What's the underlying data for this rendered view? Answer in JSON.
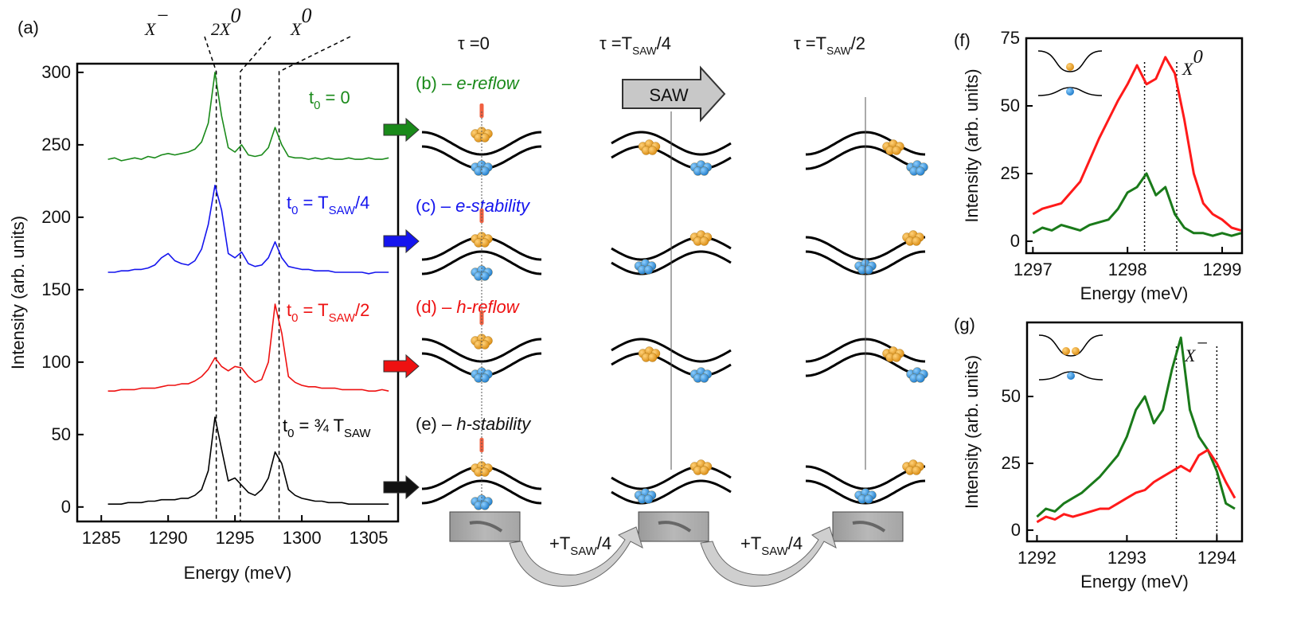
{
  "chart_data": [
    {
      "type": "line",
      "panel": "(a)",
      "xlabel": "Energy (meV)",
      "ylabel": "Intensity (arb. units)",
      "x": [
        1285.5,
        1286,
        1286.5,
        1287,
        1287.5,
        1288,
        1288.5,
        1289,
        1289.5,
        1290,
        1290.5,
        1291,
        1291.5,
        1292,
        1292.5,
        1293,
        1293.5,
        1294,
        1294.5,
        1295,
        1295.5,
        1296,
        1296.5,
        1297,
        1297.5,
        1298,
        1298.5,
        1299,
        1299.5,
        1300,
        1300.5,
        1301,
        1301.5,
        1302,
        1302.5,
        1303,
        1303.5,
        1304,
        1304.5,
        1305,
        1305.5,
        1306,
        1306.5
      ],
      "series": [
        {
          "name": [
            {
              "t": "t"
            },
            {
              "t": "0",
              "sub": true
            },
            {
              "t": " = 0"
            }
          ],
          "color": "#1a8a1a",
          "values": [
            240,
            241,
            239,
            240,
            241,
            240,
            242,
            241,
            243,
            244,
            243,
            244,
            245,
            247,
            252,
            265,
            300,
            270,
            248,
            245,
            250,
            243,
            242,
            243,
            248,
            262,
            250,
            242,
            241,
            241,
            240,
            241,
            240,
            241,
            240,
            240,
            241,
            240,
            240,
            241,
            240,
            240,
            241
          ]
        },
        {
          "name": [
            {
              "t": "t"
            },
            {
              "t": "0",
              "sub": true
            },
            {
              "t": " = T"
            },
            {
              "t": "SAW",
              "sub": true
            },
            {
              "t": "/4"
            }
          ],
          "color": "#1515ee",
          "values": [
            162,
            162,
            163,
            163,
            164,
            164,
            165,
            167,
            172,
            175,
            170,
            168,
            167,
            170,
            178,
            195,
            222,
            205,
            175,
            172,
            176,
            168,
            166,
            167,
            172,
            183,
            172,
            166,
            165,
            164,
            164,
            163,
            163,
            163,
            162,
            162,
            162,
            162,
            162,
            161,
            162,
            162,
            162
          ]
        },
        {
          "name": [
            {
              "t": "t"
            },
            {
              "t": "0",
              "sub": true
            },
            {
              "t": " = T"
            },
            {
              "t": "SAW",
              "sub": true
            },
            {
              "t": "/2"
            }
          ],
          "color": "#ee1111",
          "values": [
            80,
            80,
            81,
            81,
            81,
            82,
            82,
            82,
            83,
            84,
            84,
            85,
            85,
            87,
            90,
            95,
            103,
            97,
            94,
            97,
            96,
            90,
            86,
            88,
            100,
            140,
            120,
            90,
            86,
            84,
            83,
            83,
            82,
            82,
            82,
            81,
            81,
            81,
            81,
            80,
            80,
            81,
            80
          ]
        },
        {
          "name": [
            {
              "t": "t"
            },
            {
              "t": "0",
              "sub": true
            },
            {
              "t": " = ¾ T"
            },
            {
              "t": "SAW",
              "sub": true
            }
          ],
          "color": "#000000",
          "values": [
            2,
            2,
            2,
            3,
            3,
            3,
            4,
            4,
            5,
            5,
            5,
            6,
            6,
            8,
            12,
            25,
            62,
            40,
            18,
            20,
            15,
            10,
            8,
            12,
            20,
            38,
            30,
            12,
            8,
            6,
            5,
            4,
            4,
            3,
            3,
            3,
            2,
            2,
            2,
            2,
            2,
            2,
            2
          ]
        }
      ],
      "xlim": [
        1283.2,
        1307.2
      ],
      "ylim": [
        -10,
        306
      ],
      "xticks": [
        1285,
        1290,
        1295,
        1300,
        1305
      ],
      "yticks": [
        0,
        50,
        100,
        150,
        200,
        250,
        300
      ],
      "peaks": [
        {
          "x": 1293.6,
          "label": [
            {
              "t": "X"
            },
            {
              "t": "−",
              "sup": true
            }
          ]
        },
        {
          "x": 1295.4,
          "label": [
            {
              "t": "2X"
            },
            {
              "t": "0",
              "sup": true
            }
          ]
        },
        {
          "x": 1298.3,
          "label": [
            {
              "t": "X"
            },
            {
              "t": "0",
              "sup": true
            }
          ]
        }
      ],
      "peak_line": "dashed"
    },
    {
      "type": "line",
      "panel": "(f)",
      "xlabel": "Energy (meV)",
      "ylabel": "Intensity (arb. units)",
      "label": [
        {
          "t": "X"
        },
        {
          "t": "0",
          "sup": true
        }
      ],
      "x": [
        1297.0,
        1297.1,
        1297.2,
        1297.3,
        1297.4,
        1297.5,
        1297.6,
        1297.7,
        1297.8,
        1297.9,
        1298.0,
        1298.1,
        1298.2,
        1298.3,
        1298.4,
        1298.5,
        1298.6,
        1298.7,
        1298.8,
        1298.9,
        1299.0,
        1299.1,
        1299.2
      ],
      "series": [
        {
          "color": "#ff1a1a",
          "values": [
            10,
            12,
            13,
            14,
            18,
            22,
            30,
            38,
            45,
            52,
            58,
            65,
            58,
            60,
            68,
            62,
            45,
            25,
            14,
            10,
            8,
            5,
            4
          ]
        },
        {
          "color": "#1a7a1a",
          "values": [
            3,
            5,
            4,
            6,
            5,
            4,
            6,
            7,
            8,
            12,
            18,
            20,
            25,
            17,
            20,
            10,
            5,
            3,
            3,
            2,
            3,
            2,
            3
          ]
        }
      ],
      "xlim": [
        1296.93,
        1299.21
      ],
      "ylim": [
        -4.4,
        75
      ],
      "xticks": [
        1297,
        1298,
        1299
      ],
      "yticks": [
        0,
        25,
        50,
        75
      ],
      "peaks": [
        {
          "x": 1298.18
        },
        {
          "x": 1298.52
        }
      ],
      "peak_line": "dotted"
    },
    {
      "type": "line",
      "panel": "(g)",
      "xlabel": "Energy (meV)",
      "ylabel": "Intensity (arb. units)",
      "label": [
        {
          "t": "X"
        },
        {
          "t": "−",
          "sup": true
        }
      ],
      "x": [
        1292.0,
        1292.1,
        1292.2,
        1292.3,
        1292.4,
        1292.5,
        1292.6,
        1292.7,
        1292.8,
        1292.9,
        1293.0,
        1293.1,
        1293.2,
        1293.3,
        1293.4,
        1293.5,
        1293.6,
        1293.7,
        1293.8,
        1293.9,
        1294.0,
        1294.1,
        1294.2
      ],
      "series": [
        {
          "color": "#1a7a1a",
          "values": [
            5,
            8,
            7,
            10,
            12,
            14,
            17,
            20,
            24,
            28,
            35,
            45,
            50,
            40,
            45,
            60,
            72,
            45,
            35,
            30,
            22,
            10,
            8
          ]
        },
        {
          "color": "#ff1a1a",
          "values": [
            3,
            5,
            4,
            6,
            5,
            6,
            7,
            8,
            8,
            10,
            12,
            14,
            15,
            18,
            20,
            22,
            24,
            22,
            28,
            30,
            25,
            18,
            12
          ]
        }
      ],
      "xlim": [
        1291.89,
        1294.28
      ],
      "ylim": [
        -4.2,
        77.7
      ],
      "xticks": [
        1292,
        1293,
        1294
      ],
      "yticks": [
        0,
        25,
        50
      ],
      "peaks": [
        {
          "x": 1293.55
        },
        {
          "x": 1294.0
        }
      ],
      "peak_line": "dotted"
    }
  ],
  "diagram": {
    "columns": [
      [
        {
          "t": "τ =0"
        }
      ],
      [
        {
          "t": "τ =T"
        },
        {
          "t": "SAW",
          "sub": true
        },
        {
          "t": "/4"
        }
      ],
      [
        {
          "t": "τ =T"
        },
        {
          "t": "SAW",
          "sub": true
        },
        {
          "t": "/2"
        }
      ]
    ],
    "rows": [
      {
        "label": [
          {
            "t": "(b) – "
          },
          {
            "t": "e-reflow",
            "i": true
          }
        ],
        "color": "#1a8a1a"
      },
      {
        "label": [
          {
            "t": "(c) – "
          },
          {
            "t": "e-stability",
            "i": true
          }
        ],
        "color": "#1515ee"
      },
      {
        "label": [
          {
            "t": "(d) – "
          },
          {
            "t": "h-reflow",
            "i": true
          }
        ],
        "color": "#ee1111"
      },
      {
        "label": [
          {
            "t": "(e) – "
          },
          {
            "t": "h-stability",
            "i": true
          }
        ],
        "color": "#111111"
      }
    ],
    "saw": "SAW",
    "steps": [
      [
        {
          "t": "+T"
        },
        {
          "t": "SAW",
          "sub": true
        },
        {
          "t": "/4"
        }
      ],
      [
        {
          "t": "+T"
        },
        {
          "t": "SAW",
          "sub": true
        },
        {
          "t": "/4"
        }
      ]
    ]
  }
}
